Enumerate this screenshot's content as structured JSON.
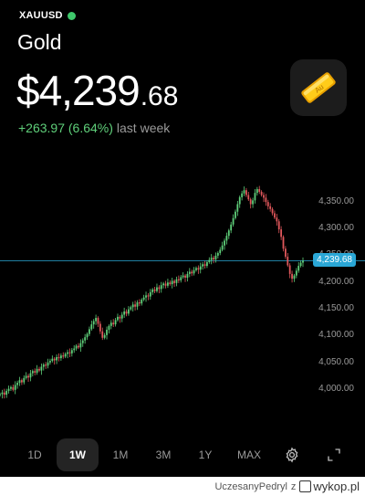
{
  "header": {
    "ticker": "XAUUSD",
    "asset_name": "Gold",
    "live_status_color": "#3ec86b",
    "price_main": "$4,239",
    "price_decimal": ".68",
    "change_value": "+263.97 (6.64%)",
    "change_period": "last week",
    "change_color": "#5fcf7a",
    "icon": "gold-bar-icon",
    "icon_text": "Au"
  },
  "chart_data": {
    "type": "candlestick",
    "y_ticks": [
      "4,350.00",
      "4,300.00",
      "4,250.00",
      "4,200.00",
      "4,150.00",
      "4,100.00",
      "4,050.00",
      "4,000.00"
    ],
    "ylim": [
      3985,
      4385
    ],
    "current_price_label": "4,239.68",
    "current_price": 4239.68,
    "current_price_color": "#2aa7d6",
    "up_color": "#5fcf7a",
    "down_color": "#e0575b",
    "series": [
      {
        "values": [
          3991,
          3994,
          3990,
          3997,
          4001,
          4004,
          3999,
          4008,
          4012,
          4017,
          4013,
          4021,
          4025,
          4022,
          4030,
          4034,
          4031,
          4038,
          4035,
          4042,
          4046,
          4044,
          4050,
          4053,
          4057,
          4054,
          4060,
          4058,
          4063,
          4061,
          4066,
          4069,
          4067,
          4073,
          4076,
          4081,
          4078,
          4086,
          4091,
          4097,
          4103,
          4112,
          4121,
          4127,
          4133,
          4122,
          4108,
          4096,
          4101,
          4111,
          4118,
          4124,
          4121,
          4129,
          4135,
          4132,
          4139,
          4145,
          4141,
          4149,
          4153,
          4158,
          4154,
          4162,
          4160,
          4167,
          4171,
          4175,
          4173,
          4181,
          4186,
          4183,
          4190,
          4187,
          4194,
          4197,
          4193,
          4199,
          4196,
          4202,
          4198,
          4205,
          4203,
          4209,
          4212,
          4208,
          4215,
          4219,
          4216,
          4222,
          4226,
          4223,
          4229,
          4233,
          4230,
          4237,
          4241,
          4245,
          4242,
          4249,
          4254,
          4260,
          4268,
          4277,
          4286,
          4296,
          4307,
          4319,
          4331,
          4345,
          4358,
          4365,
          4371,
          4362,
          4354,
          4345,
          4352,
          4366,
          4373,
          4368,
          4362,
          4357,
          4349,
          4341,
          4336,
          4328,
          4320,
          4313,
          4298,
          4284,
          4262,
          4247,
          4231,
          4215,
          4206,
          4212,
          4221,
          4230,
          4236,
          4239.68
        ]
      }
    ]
  },
  "range_selector": {
    "options": [
      "1D",
      "1W",
      "1M",
      "3M",
      "1Y",
      "MAX"
    ],
    "selected": "1W",
    "settings_icon": "gear-icon",
    "fullscreen_icon": "expand-icon"
  },
  "footer": {
    "username": "UczesanyPedryl",
    "separator": "z",
    "site": "wykop.pl"
  }
}
